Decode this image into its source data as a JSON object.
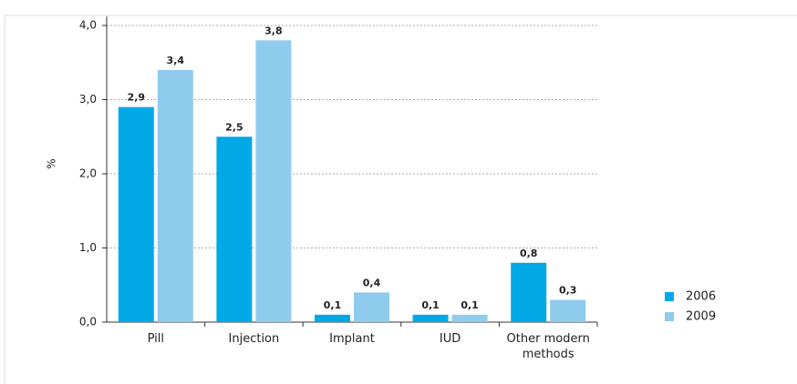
{
  "chart_data": {
    "type": "bar",
    "y_label": "%",
    "categories": [
      "Pill",
      "Injection",
      "Implant",
      "IUD",
      "Other modern methods"
    ],
    "series": [
      {
        "name": "2006",
        "color": "#00a9e6",
        "values": [
          2.9,
          2.5,
          0.1,
          0.1,
          0.8
        ],
        "value_labels": [
          "2,9",
          "2,5",
          "0,1",
          "0,1",
          "0,8"
        ]
      },
      {
        "name": "2009",
        "color": "#8fcbec",
        "values": [
          3.4,
          3.8,
          0.4,
          0.1,
          0.3
        ],
        "value_labels": [
          "3,4",
          "3,8",
          "0,4",
          "0,1",
          "0,3"
        ]
      }
    ],
    "ylim": [
      0,
      4
    ],
    "yticks": [
      {
        "value": 0,
        "label": "0,0"
      },
      {
        "value": 1,
        "label": "1,0"
      },
      {
        "value": 2,
        "label": "2,0"
      },
      {
        "value": 3,
        "label": "3,0"
      },
      {
        "value": 4,
        "label": "4,0"
      }
    ],
    "grid": true,
    "legend": "right"
  }
}
